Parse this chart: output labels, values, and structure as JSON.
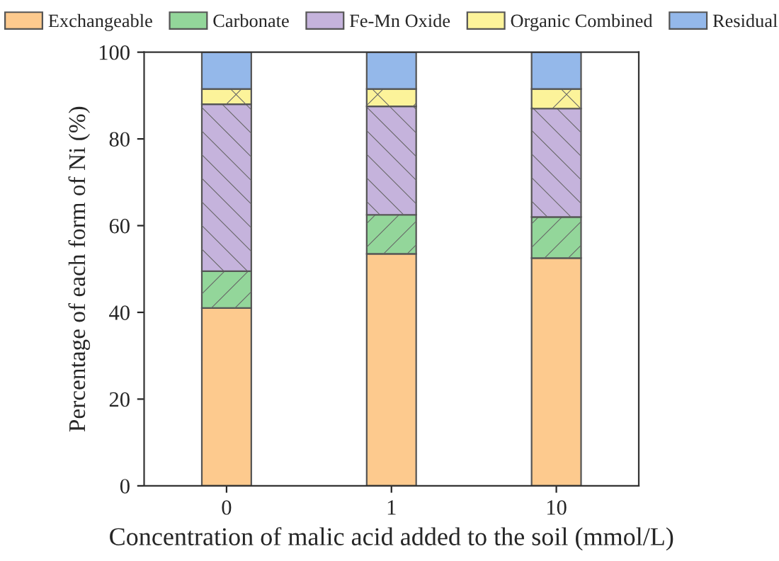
{
  "chart_data": {
    "type": "bar",
    "stacked": true,
    "xlabel": "Concentration of malic acid added to the soil (mmol/L)",
    "ylabel": "Percentage of each form of Ni (%)",
    "categories": [
      "0",
      "1",
      "10"
    ],
    "series": [
      {
        "name": "Exchangeable",
        "color": "#fdca8e",
        "values": [
          41,
          53.5,
          52.5
        ]
      },
      {
        "name": "Carbonate",
        "color": "#93d69a",
        "values": [
          8.5,
          9,
          9.5
        ]
      },
      {
        "name": "Fe-Mn Oxide",
        "color": "#c5b3dc",
        "values": [
          38.5,
          25,
          25
        ]
      },
      {
        "name": "Organic Combined",
        "color": "#fcf39a",
        "values": [
          3.5,
          4,
          4.5
        ]
      },
      {
        "name": "Residual",
        "color": "#94b8ea",
        "values": [
          8.5,
          8.5,
          8.5
        ]
      }
    ],
    "ylim": [
      0,
      100
    ],
    "yticks": [
      0,
      20,
      40,
      60,
      80,
      100
    ],
    "grid": false,
    "legend": "top"
  }
}
